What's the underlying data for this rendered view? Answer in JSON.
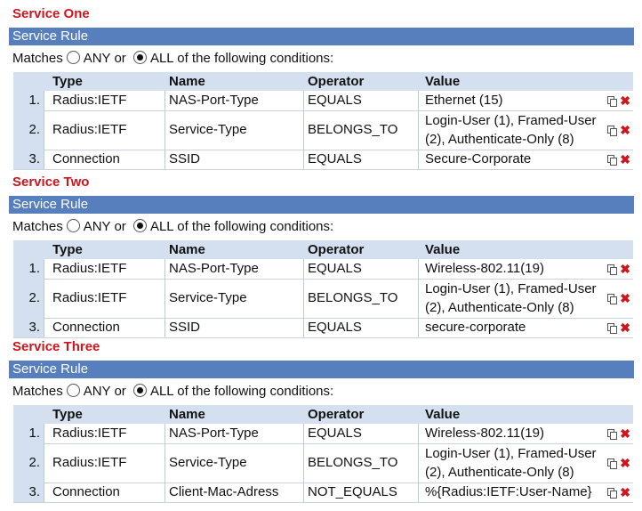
{
  "services": [
    {
      "title": "Service One",
      "rule_bar": "Service Rule",
      "matches": {
        "prefix": "Matches",
        "any": "ANY or",
        "all": "ALL of the following conditions:",
        "selected": "ALL"
      },
      "headers": [
        "Type",
        "Name",
        "Operator",
        "Value"
      ],
      "rows": [
        {
          "num": "1.",
          "type": "Radius:IETF",
          "name": "NAS-Port-Type",
          "operator": "EQUALS",
          "value": [
            "Ethernet (15)"
          ]
        },
        {
          "num": "2.",
          "type": "Radius:IETF",
          "name": "Service-Type",
          "operator": "BELONGS_TO",
          "value": [
            "Login-User (1), Framed-User",
            "(2), Authenticate-Only (8)"
          ]
        },
        {
          "num": "3.",
          "type": "Connection",
          "name": "SSID",
          "operator": "EQUALS",
          "value": [
            "Secure-Corporate"
          ]
        }
      ]
    },
    {
      "title": "Service Two",
      "rule_bar": "Service Rule",
      "matches": {
        "prefix": "Matches",
        "any": "ANY or",
        "all": "ALL of the following conditions:",
        "selected": "ALL"
      },
      "headers": [
        "Type",
        "Name",
        "Operator",
        "Value"
      ],
      "rows": [
        {
          "num": "1.",
          "type": "Radius:IETF",
          "name": "NAS-Port-Type",
          "operator": "EQUALS",
          "value": [
            "Wireless-802.11(19)"
          ]
        },
        {
          "num": "2.",
          "type": "Radius:IETF",
          "name": "Service-Type",
          "operator": "BELONGS_TO",
          "value": [
            "Login-User (1), Framed-User",
            "(2), Authenticate-Only (8)"
          ]
        },
        {
          "num": "3.",
          "type": "Connection",
          "name": "SSID",
          "operator": "EQUALS",
          "value": [
            "secure-corporate"
          ]
        }
      ]
    },
    {
      "title": "Service Three",
      "rule_bar": "Service Rule",
      "matches": {
        "prefix": "Matches",
        "any": "ANY or",
        "all": "ALL of the following conditions:",
        "selected": "ALL"
      },
      "headers": [
        "Type",
        "Name",
        "Operator",
        "Value"
      ],
      "rows": [
        {
          "num": "1.",
          "type": "Radius:IETF",
          "name": "NAS-Port-Type",
          "operator": "EQUALS",
          "value": [
            "Wireless-802.11(19)"
          ]
        },
        {
          "num": "2.",
          "type": "Radius:IETF",
          "name": "Service-Type",
          "operator": "BELONGS_TO",
          "value": [
            "Login-User (1), Framed-User",
            "(2), Authenticate-Only (8)"
          ]
        },
        {
          "num": "3.",
          "type": "Connection",
          "name": "Client-Mac-Adress",
          "operator": "NOT_EQUALS",
          "value": [
            "%{Radius:IETF:User-Name}"
          ]
        }
      ]
    }
  ],
  "icons": {
    "copy": "copy-icon",
    "delete": "delete-x-icon"
  },
  "colors": {
    "title": "#d0141c",
    "rule_bar": "#577fbd",
    "header": "#d4dff0",
    "delete": "#d0141c"
  }
}
